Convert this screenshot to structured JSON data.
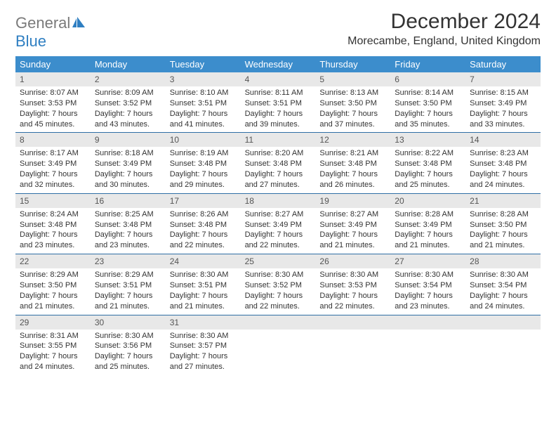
{
  "logo": {
    "part1": "General",
    "part2": "Blue"
  },
  "title": "December 2024",
  "location": "Morecambe, England, United Kingdom",
  "colors": {
    "header_bg": "#3c8dcc",
    "daynum_bg": "#e8e8e8",
    "week_border": "#2f6fa5",
    "logo_gray": "#7a7a7a",
    "logo_blue": "#2f7fc2"
  },
  "weekdays": [
    "Sunday",
    "Monday",
    "Tuesday",
    "Wednesday",
    "Thursday",
    "Friday",
    "Saturday"
  ],
  "weeks": [
    [
      {
        "n": "1",
        "sr": "Sunrise: 8:07 AM",
        "ss": "Sunset: 3:53 PM",
        "d1": "Daylight: 7 hours",
        "d2": "and 45 minutes."
      },
      {
        "n": "2",
        "sr": "Sunrise: 8:09 AM",
        "ss": "Sunset: 3:52 PM",
        "d1": "Daylight: 7 hours",
        "d2": "and 43 minutes."
      },
      {
        "n": "3",
        "sr": "Sunrise: 8:10 AM",
        "ss": "Sunset: 3:51 PM",
        "d1": "Daylight: 7 hours",
        "d2": "and 41 minutes."
      },
      {
        "n": "4",
        "sr": "Sunrise: 8:11 AM",
        "ss": "Sunset: 3:51 PM",
        "d1": "Daylight: 7 hours",
        "d2": "and 39 minutes."
      },
      {
        "n": "5",
        "sr": "Sunrise: 8:13 AM",
        "ss": "Sunset: 3:50 PM",
        "d1": "Daylight: 7 hours",
        "d2": "and 37 minutes."
      },
      {
        "n": "6",
        "sr": "Sunrise: 8:14 AM",
        "ss": "Sunset: 3:50 PM",
        "d1": "Daylight: 7 hours",
        "d2": "and 35 minutes."
      },
      {
        "n": "7",
        "sr": "Sunrise: 8:15 AM",
        "ss": "Sunset: 3:49 PM",
        "d1": "Daylight: 7 hours",
        "d2": "and 33 minutes."
      }
    ],
    [
      {
        "n": "8",
        "sr": "Sunrise: 8:17 AM",
        "ss": "Sunset: 3:49 PM",
        "d1": "Daylight: 7 hours",
        "d2": "and 32 minutes."
      },
      {
        "n": "9",
        "sr": "Sunrise: 8:18 AM",
        "ss": "Sunset: 3:49 PM",
        "d1": "Daylight: 7 hours",
        "d2": "and 30 minutes."
      },
      {
        "n": "10",
        "sr": "Sunrise: 8:19 AM",
        "ss": "Sunset: 3:48 PM",
        "d1": "Daylight: 7 hours",
        "d2": "and 29 minutes."
      },
      {
        "n": "11",
        "sr": "Sunrise: 8:20 AM",
        "ss": "Sunset: 3:48 PM",
        "d1": "Daylight: 7 hours",
        "d2": "and 27 minutes."
      },
      {
        "n": "12",
        "sr": "Sunrise: 8:21 AM",
        "ss": "Sunset: 3:48 PM",
        "d1": "Daylight: 7 hours",
        "d2": "and 26 minutes."
      },
      {
        "n": "13",
        "sr": "Sunrise: 8:22 AM",
        "ss": "Sunset: 3:48 PM",
        "d1": "Daylight: 7 hours",
        "d2": "and 25 minutes."
      },
      {
        "n": "14",
        "sr": "Sunrise: 8:23 AM",
        "ss": "Sunset: 3:48 PM",
        "d1": "Daylight: 7 hours",
        "d2": "and 24 minutes."
      }
    ],
    [
      {
        "n": "15",
        "sr": "Sunrise: 8:24 AM",
        "ss": "Sunset: 3:48 PM",
        "d1": "Daylight: 7 hours",
        "d2": "and 23 minutes."
      },
      {
        "n": "16",
        "sr": "Sunrise: 8:25 AM",
        "ss": "Sunset: 3:48 PM",
        "d1": "Daylight: 7 hours",
        "d2": "and 23 minutes."
      },
      {
        "n": "17",
        "sr": "Sunrise: 8:26 AM",
        "ss": "Sunset: 3:48 PM",
        "d1": "Daylight: 7 hours",
        "d2": "and 22 minutes."
      },
      {
        "n": "18",
        "sr": "Sunrise: 8:27 AM",
        "ss": "Sunset: 3:49 PM",
        "d1": "Daylight: 7 hours",
        "d2": "and 22 minutes."
      },
      {
        "n": "19",
        "sr": "Sunrise: 8:27 AM",
        "ss": "Sunset: 3:49 PM",
        "d1": "Daylight: 7 hours",
        "d2": "and 21 minutes."
      },
      {
        "n": "20",
        "sr": "Sunrise: 8:28 AM",
        "ss": "Sunset: 3:49 PM",
        "d1": "Daylight: 7 hours",
        "d2": "and 21 minutes."
      },
      {
        "n": "21",
        "sr": "Sunrise: 8:28 AM",
        "ss": "Sunset: 3:50 PM",
        "d1": "Daylight: 7 hours",
        "d2": "and 21 minutes."
      }
    ],
    [
      {
        "n": "22",
        "sr": "Sunrise: 8:29 AM",
        "ss": "Sunset: 3:50 PM",
        "d1": "Daylight: 7 hours",
        "d2": "and 21 minutes."
      },
      {
        "n": "23",
        "sr": "Sunrise: 8:29 AM",
        "ss": "Sunset: 3:51 PM",
        "d1": "Daylight: 7 hours",
        "d2": "and 21 minutes."
      },
      {
        "n": "24",
        "sr": "Sunrise: 8:30 AM",
        "ss": "Sunset: 3:51 PM",
        "d1": "Daylight: 7 hours",
        "d2": "and 21 minutes."
      },
      {
        "n": "25",
        "sr": "Sunrise: 8:30 AM",
        "ss": "Sunset: 3:52 PM",
        "d1": "Daylight: 7 hours",
        "d2": "and 22 minutes."
      },
      {
        "n": "26",
        "sr": "Sunrise: 8:30 AM",
        "ss": "Sunset: 3:53 PM",
        "d1": "Daylight: 7 hours",
        "d2": "and 22 minutes."
      },
      {
        "n": "27",
        "sr": "Sunrise: 8:30 AM",
        "ss": "Sunset: 3:54 PM",
        "d1": "Daylight: 7 hours",
        "d2": "and 23 minutes."
      },
      {
        "n": "28",
        "sr": "Sunrise: 8:30 AM",
        "ss": "Sunset: 3:54 PM",
        "d1": "Daylight: 7 hours",
        "d2": "and 24 minutes."
      }
    ],
    [
      {
        "n": "29",
        "sr": "Sunrise: 8:31 AM",
        "ss": "Sunset: 3:55 PM",
        "d1": "Daylight: 7 hours",
        "d2": "and 24 minutes."
      },
      {
        "n": "30",
        "sr": "Sunrise: 8:30 AM",
        "ss": "Sunset: 3:56 PM",
        "d1": "Daylight: 7 hours",
        "d2": "and 25 minutes."
      },
      {
        "n": "31",
        "sr": "Sunrise: 8:30 AM",
        "ss": "Sunset: 3:57 PM",
        "d1": "Daylight: 7 hours",
        "d2": "and 27 minutes."
      },
      {
        "n": "",
        "sr": "",
        "ss": "",
        "d1": "",
        "d2": "",
        "empty": true
      },
      {
        "n": "",
        "sr": "",
        "ss": "",
        "d1": "",
        "d2": "",
        "empty": true
      },
      {
        "n": "",
        "sr": "",
        "ss": "",
        "d1": "",
        "d2": "",
        "empty": true
      },
      {
        "n": "",
        "sr": "",
        "ss": "",
        "d1": "",
        "d2": "",
        "empty": true
      }
    ]
  ]
}
